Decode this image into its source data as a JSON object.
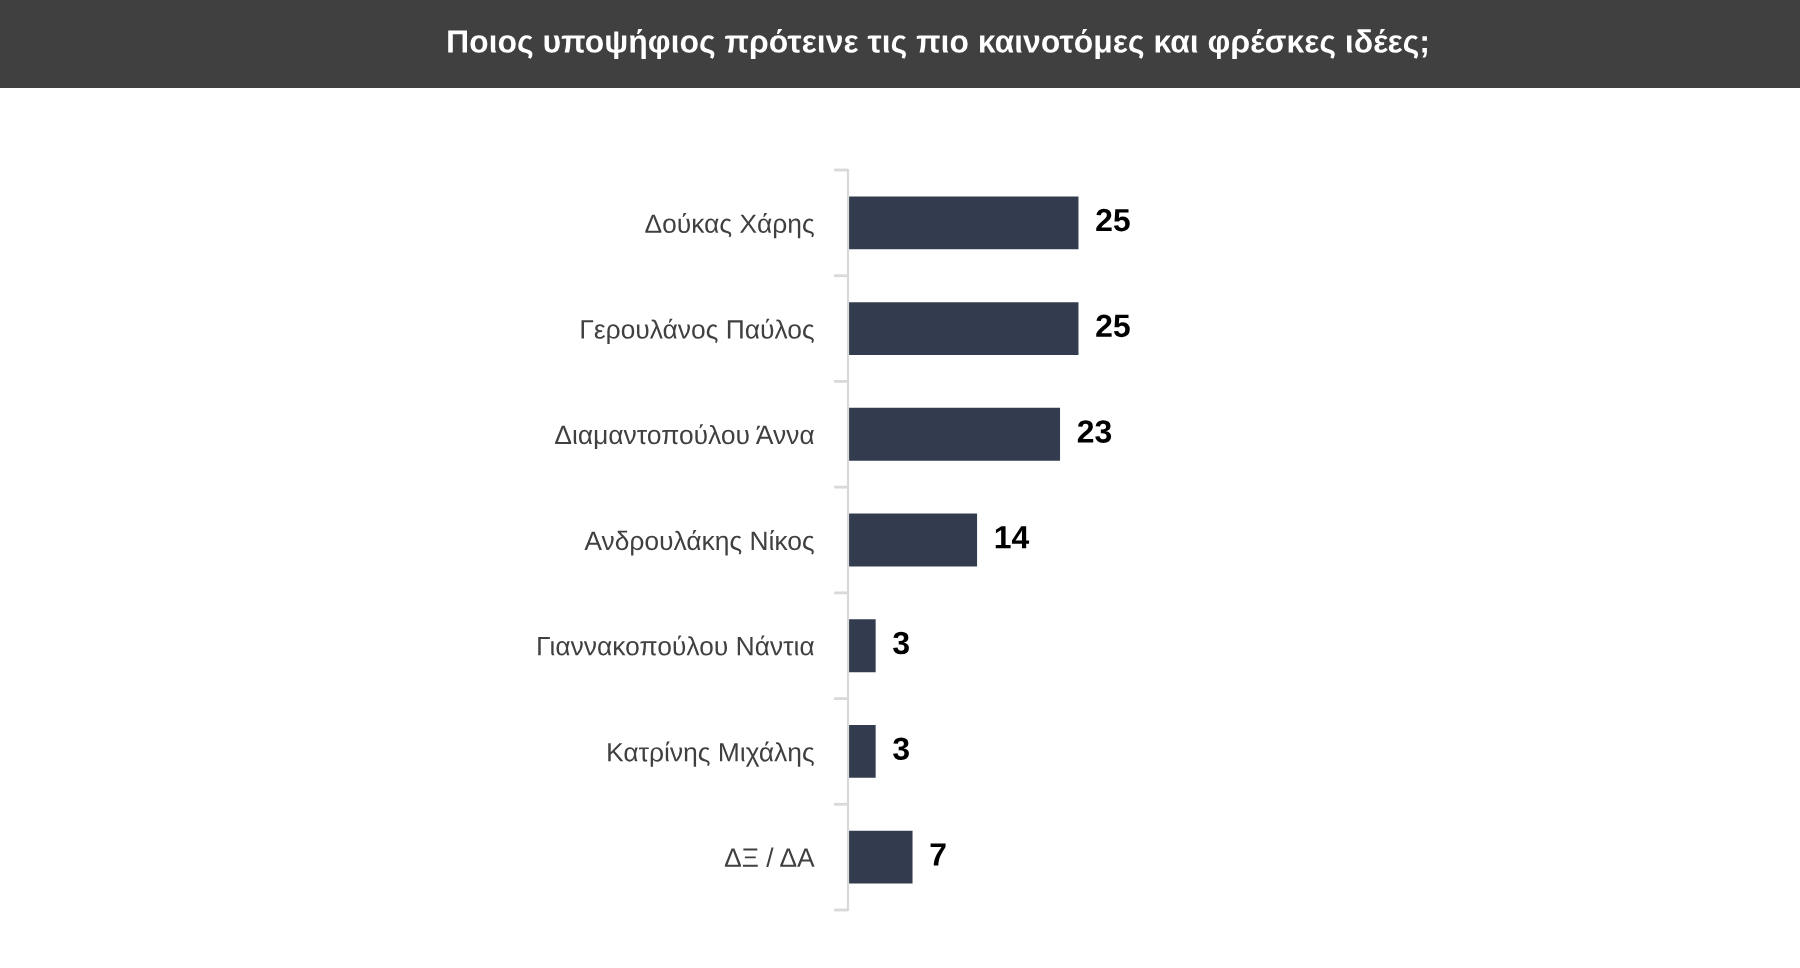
{
  "chart_data": {
    "type": "bar",
    "orientation": "horizontal",
    "title": "Ποιος υποψήφιος πρότεινε τις πιο καινοτόμες και φρέσκες ιδέες;",
    "categories": [
      "Δούκας Χάρης",
      "Γερουλάνος Παύλος",
      "Διαμαντοπούλου Άννα",
      "Ανδρουλάκης Νίκος",
      "Γιαννακοπούλου Νάντια",
      "Κατρίνης Μιχάλης",
      "ΔΞ / ΔΑ"
    ],
    "values": [
      25,
      25,
      23,
      14,
      3,
      3,
      7
    ],
    "color": "#333c4e",
    "data_labels": true,
    "tick_labels": "y"
  }
}
